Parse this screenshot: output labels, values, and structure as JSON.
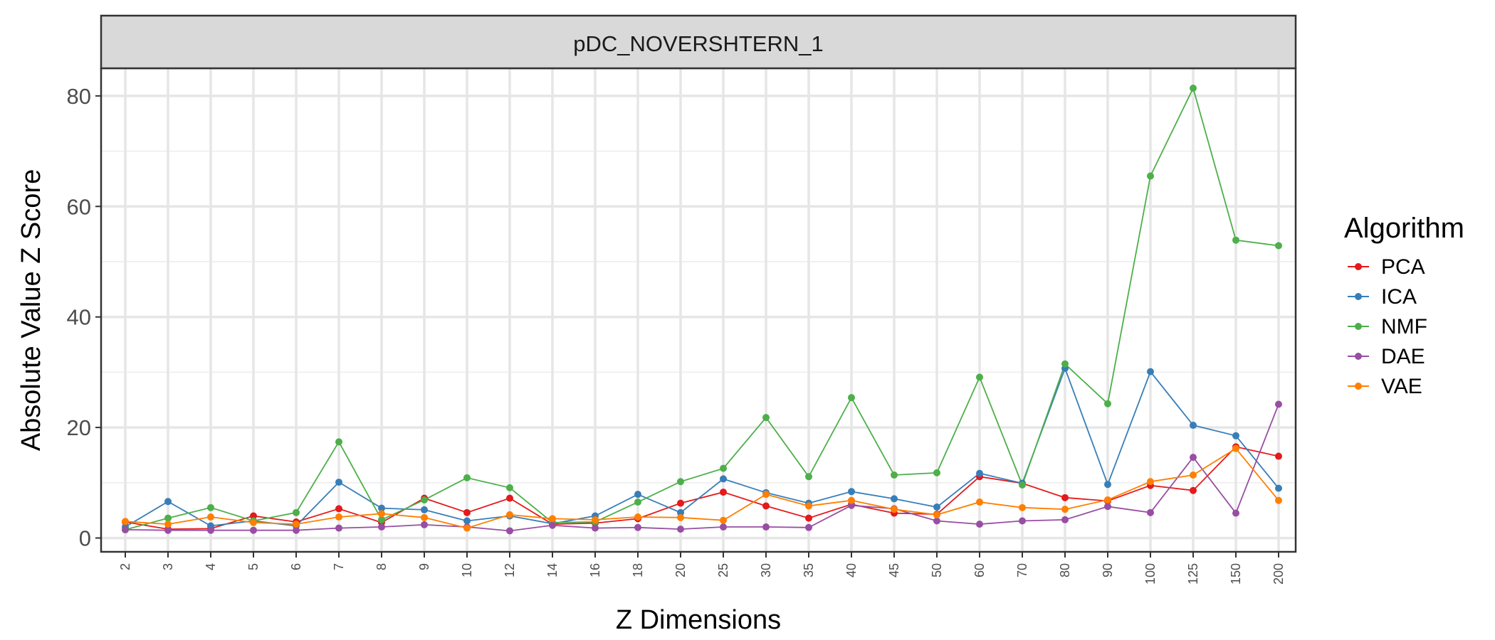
{
  "chart_data": {
    "type": "line",
    "title": "pDC_NOVERSHTERN_1",
    "xlabel": "Z Dimensions",
    "ylabel": "Absolute Value Z Score",
    "categories": [
      "2",
      "3",
      "4",
      "5",
      "6",
      "7",
      "8",
      "9",
      "10",
      "12",
      "14",
      "16",
      "18",
      "20",
      "25",
      "30",
      "35",
      "40",
      "45",
      "50",
      "60",
      "70",
      "80",
      "90",
      "100",
      "125",
      "150",
      "200"
    ],
    "ylim": [
      -2.5,
      85
    ],
    "yticks": [
      0,
      20,
      40,
      60,
      80
    ],
    "grid": true,
    "legend": {
      "title": "Algorithm",
      "position": "right"
    },
    "series": [
      {
        "name": "PCA",
        "color": "#e41a1c",
        "values": [
          2.9,
          1.6,
          1.7,
          4.0,
          2.9,
          5.3,
          2.8,
          7.2,
          4.6,
          7.2,
          2.5,
          2.7,
          3.5,
          6.3,
          8.3,
          5.8,
          3.6,
          6.1,
          4.5,
          4.3,
          11.1,
          9.9,
          7.3,
          6.7,
          9.5,
          8.6,
          16.5,
          14.8
        ]
      },
      {
        "name": "ICA",
        "color": "#377eb8",
        "values": [
          2.0,
          6.6,
          2.2,
          3.1,
          2.2,
          10.1,
          5.4,
          5.1,
          3.1,
          4.0,
          2.6,
          4.0,
          7.9,
          4.6,
          10.7,
          8.2,
          6.3,
          8.4,
          7.1,
          5.6,
          11.7,
          9.9,
          30.7,
          9.7,
          30.1,
          20.4,
          18.5,
          9.0
        ]
      },
      {
        "name": "NMF",
        "color": "#4daf4a",
        "values": [
          1.5,
          3.6,
          5.5,
          3.1,
          4.6,
          17.4,
          3.3,
          6.9,
          10.9,
          9.1,
          2.8,
          2.9,
          6.5,
          10.2,
          12.6,
          21.8,
          11.1,
          25.4,
          11.4,
          11.8,
          29.1,
          9.6,
          31.5,
          24.3,
          65.5,
          81.4,
          53.9,
          52.9
        ]
      },
      {
        "name": "DAE",
        "color": "#984ea3",
        "values": [
          1.5,
          1.4,
          1.4,
          1.4,
          1.4,
          1.8,
          2.0,
          2.4,
          2.0,
          1.3,
          2.3,
          1.8,
          1.9,
          1.6,
          2.0,
          2.0,
          1.9,
          5.9,
          5.3,
          3.1,
          2.5,
          3.1,
          3.3,
          5.7,
          4.6,
          14.6,
          4.5,
          24.2
        ]
      },
      {
        "name": "VAE",
        "color": "#ff7f00",
        "values": [
          3.0,
          2.5,
          3.8,
          2.8,
          2.5,
          3.8,
          4.4,
          3.7,
          1.8,
          4.2,
          3.5,
          3.3,
          3.8,
          3.7,
          3.2,
          7.9,
          5.8,
          6.8,
          5.2,
          4.2,
          6.5,
          5.5,
          5.2,
          6.9,
          10.2,
          11.4,
          16.2,
          6.8
        ]
      }
    ]
  }
}
